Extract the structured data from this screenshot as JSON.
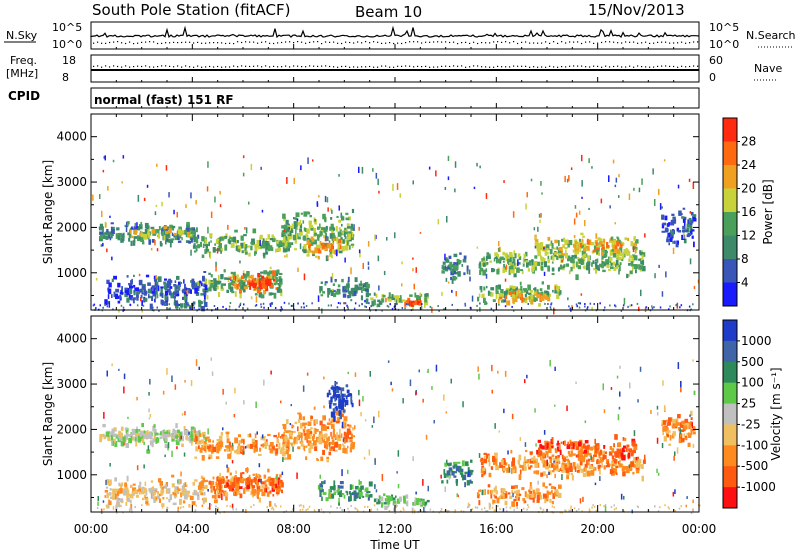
{
  "header": {
    "station": "South Pole Station (fitACF)",
    "beam": "Beam 10",
    "date": "15/Nov/2013"
  },
  "status_panels": {
    "nsky_label": "N.Sky",
    "nsky_ticks": [
      "10^5",
      "10^0"
    ],
    "nsearch_label": "N.Search",
    "nsearch_ticks": [
      "10^5",
      "10^0"
    ],
    "freq_label": "Freq.",
    "freq_unit": "[MHz]",
    "freq_ticks": [
      "18",
      "8"
    ],
    "nave_label": "Nave",
    "nave_ticks": [
      "60",
      "0"
    ],
    "cpid_label": "CPID",
    "cpid_value": "normal (fast) 151 RF"
  },
  "chart_data": [
    {
      "type": "heatmap",
      "name": "power",
      "ylabel": "Slant Range [km]",
      "ylim": [
        180,
        4500
      ],
      "xlim": [
        0,
        24
      ],
      "yticks": [
        "1000",
        "2000",
        "3000",
        "4000"
      ],
      "colorbar": {
        "label": "Power [dB]",
        "ticks": [
          "4",
          "8",
          "12",
          "16",
          "20",
          "24",
          "28"
        ],
        "colors": [
          "#1a1aff",
          "#3a55b8",
          "#3d8a6a",
          "#4aa05a",
          "#c8d23a",
          "#f0a020",
          "#ff6a10",
          "#ff2a10"
        ]
      },
      "echo_regions": [
        {
          "t0": 0.3,
          "t1": 4.2,
          "r0": 1550,
          "r1": 2250,
          "level": 2
        },
        {
          "t0": 1.5,
          "t1": 4.0,
          "r0": 1750,
          "r1": 2050,
          "level": 4
        },
        {
          "t0": 4.0,
          "t1": 7.8,
          "r0": 1300,
          "r1": 2050,
          "level": 3
        },
        {
          "t0": 4.3,
          "t1": 7.5,
          "r0": 400,
          "r1": 1250,
          "level": 3
        },
        {
          "t0": 5.5,
          "t1": 7.3,
          "r0": 550,
          "r1": 1100,
          "level": 6
        },
        {
          "t0": 6.2,
          "t1": 7.0,
          "r0": 650,
          "r1": 950,
          "level": 7
        },
        {
          "t0": 7.5,
          "t1": 10.3,
          "r0": 1200,
          "r1": 2600,
          "level": 3
        },
        {
          "t0": 8.5,
          "t1": 9.8,
          "r0": 1300,
          "r1": 1900,
          "level": 5
        },
        {
          "t0": 9.0,
          "t1": 11.0,
          "r0": 350,
          "r1": 1000,
          "level": 2
        },
        {
          "t0": 11.0,
          "t1": 13.3,
          "r0": 250,
          "r1": 650,
          "level": 3
        },
        {
          "t0": 12.3,
          "t1": 13.0,
          "r0": 300,
          "r1": 500,
          "level": 6
        },
        {
          "t0": 13.8,
          "t1": 15.0,
          "r0": 700,
          "r1": 1500,
          "level": 2
        },
        {
          "t0": 15.2,
          "t1": 18.5,
          "r0": 300,
          "r1": 900,
          "level": 3
        },
        {
          "t0": 16.0,
          "t1": 18.0,
          "r0": 350,
          "r1": 700,
          "level": 5
        },
        {
          "t0": 15.3,
          "t1": 21.8,
          "r0": 900,
          "r1": 1650,
          "level": 3
        },
        {
          "t0": 17.5,
          "t1": 21.5,
          "r0": 1250,
          "r1": 1950,
          "level": 4
        },
        {
          "t0": 19.0,
          "t1": 21.0,
          "r0": 1450,
          "r1": 1850,
          "level": 5
        },
        {
          "t0": 22.5,
          "t1": 23.8,
          "r0": 1500,
          "r1": 2600,
          "level": 1
        },
        {
          "t0": 3.2,
          "t1": 4.5,
          "r0": 200,
          "r1": 500,
          "level": 2
        },
        {
          "t0": 0.5,
          "t1": 4.5,
          "r0": 200,
          "r1": 1100,
          "level": 1
        }
      ]
    },
    {
      "type": "heatmap",
      "name": "velocity",
      "ylabel": "Slant Range [km]",
      "xlabel": "Time UT",
      "ylim": [
        180,
        4500
      ],
      "xlim": [
        0,
        24
      ],
      "yticks": [
        "1000",
        "2000",
        "3000",
        "4000"
      ],
      "xticks": [
        "00:00",
        "04:00",
        "08:00",
        "12:00",
        "16:00",
        "20:00",
        "00:00"
      ],
      "colorbar": {
        "label": "Velocity [m s⁻¹]",
        "ticks": [
          "1000",
          "500",
          "100",
          "25",
          "-25",
          "-100",
          "-500",
          "-1000"
        ],
        "colors": [
          "#1e3cc8",
          "#3f64a8",
          "#2e8a5a",
          "#5ec848",
          "#c0c0c0",
          "#f0c060",
          "#ff8a20",
          "#ff5a10",
          "#ff1010"
        ]
      },
      "echo_regions": [
        {
          "t0": 0.3,
          "t1": 4.2,
          "r0": 1550,
          "r1": 2250,
          "level": 4
        },
        {
          "t0": 1.0,
          "t1": 4.5,
          "r0": 1700,
          "r1": 2100,
          "level": 4
        },
        {
          "t0": 4.0,
          "t1": 7.8,
          "r0": 1300,
          "r1": 2050,
          "level": 6
        },
        {
          "t0": 4.3,
          "t1": 7.5,
          "r0": 400,
          "r1": 1250,
          "level": 6
        },
        {
          "t0": 5.0,
          "t1": 7.5,
          "r0": 550,
          "r1": 1100,
          "level": 7
        },
        {
          "t0": 7.5,
          "t1": 10.3,
          "r0": 1200,
          "r1": 2600,
          "level": 6
        },
        {
          "t0": 9.3,
          "t1": 10.3,
          "r0": 2100,
          "r1": 3300,
          "level": 0
        },
        {
          "t0": 9.0,
          "t1": 11.0,
          "r0": 350,
          "r1": 1000,
          "level": 2
        },
        {
          "t0": 11.0,
          "t1": 13.3,
          "r0": 250,
          "r1": 650,
          "level": 3
        },
        {
          "t0": 13.8,
          "t1": 15.0,
          "r0": 700,
          "r1": 1500,
          "level": 2
        },
        {
          "t0": 15.2,
          "t1": 18.5,
          "r0": 300,
          "r1": 900,
          "level": 6
        },
        {
          "t0": 15.3,
          "t1": 21.8,
          "r0": 900,
          "r1": 1650,
          "level": 6
        },
        {
          "t0": 17.5,
          "t1": 21.5,
          "r0": 1250,
          "r1": 1950,
          "level": 7
        },
        {
          "t0": 22.5,
          "t1": 23.8,
          "r0": 1500,
          "r1": 2600,
          "level": 6
        },
        {
          "t0": 0.5,
          "t1": 4.5,
          "r0": 200,
          "r1": 1100,
          "level": 5
        }
      ]
    }
  ]
}
